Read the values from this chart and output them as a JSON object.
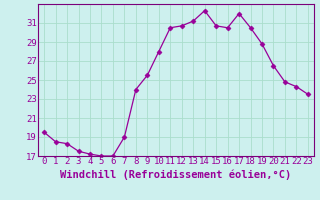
{
  "x": [
    0,
    1,
    2,
    3,
    4,
    5,
    6,
    7,
    8,
    9,
    10,
    11,
    12,
    13,
    14,
    15,
    16,
    17,
    18,
    19,
    20,
    21,
    22,
    23
  ],
  "y": [
    19.5,
    18.5,
    18.3,
    17.5,
    17.2,
    17.0,
    17.0,
    19.0,
    24.0,
    25.5,
    28.0,
    30.5,
    30.7,
    31.2,
    32.3,
    30.7,
    30.5,
    32.0,
    30.5,
    28.8,
    26.5,
    24.8,
    24.3,
    23.5
  ],
  "line_color": "#990099",
  "marker": "D",
  "markersize": 2.5,
  "bg_color": "#cdf0ee",
  "grid_color": "#aaddcc",
  "xlabel": "Windchill (Refroidissement éolien,°C)",
  "xlabel_fontsize": 7.5,
  "ylim_min": 17,
  "ylim_max": 33,
  "yticks": [
    17,
    19,
    21,
    23,
    25,
    27,
    29,
    31
  ],
  "xticks": [
    0,
    1,
    2,
    3,
    4,
    5,
    6,
    7,
    8,
    9,
    10,
    11,
    12,
    13,
    14,
    15,
    16,
    17,
    18,
    19,
    20,
    21,
    22,
    23
  ],
  "tick_fontsize": 6.5,
  "spine_color": "#7a007a"
}
